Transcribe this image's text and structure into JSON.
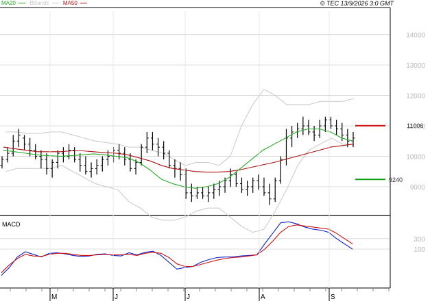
{
  "header": {
    "copyright": "© TEC 13/9/2026 3:0 GMT",
    "legend": [
      {
        "label": "MA20",
        "color": "#22aa22"
      },
      {
        "label": "BBands",
        "color": "#c8c8c8"
      },
      {
        "label": "MA50",
        "color": "#aa1111"
      }
    ]
  },
  "chart_data": [
    {
      "type": "line",
      "panel": "price",
      "x_labels": [
        "M",
        "J",
        "J",
        "A",
        "S"
      ],
      "yticks": [
        "9000",
        "10000",
        "11000",
        "12000",
        "13000",
        "14000"
      ],
      "ylim": [
        8100,
        14800
      ],
      "levels": [
        {
          "name": "resistance",
          "label": "11006",
          "value": 11006,
          "color": "#cc1111"
        },
        {
          "name": "support",
          "label": "9240",
          "value": 9240,
          "color": "#11a011"
        }
      ],
      "ohlc_bars": [
        [
          9700,
          10000,
          9600,
          9900
        ],
        [
          9900,
          10300,
          9800,
          10100
        ],
        [
          10100,
          10700,
          10000,
          10500
        ],
        [
          10500,
          10900,
          10300,
          10700
        ],
        [
          10600,
          10700,
          10200,
          10400
        ],
        [
          10400,
          10600,
          10000,
          10200
        ],
        [
          10200,
          10400,
          9900,
          10000
        ],
        [
          10000,
          10200,
          9600,
          9900
        ],
        [
          9900,
          10100,
          9400,
          9600
        ],
        [
          9600,
          9900,
          9300,
          9800
        ],
        [
          9800,
          10200,
          9600,
          10100
        ],
        [
          10100,
          10300,
          9800,
          10000
        ],
        [
          10000,
          10400,
          9900,
          10200
        ],
        [
          10200,
          10300,
          9800,
          9900
        ],
        [
          9900,
          10100,
          9500,
          9700
        ],
        [
          9700,
          10000,
          9400,
          9500
        ],
        [
          9500,
          9800,
          9300,
          9600
        ],
        [
          9600,
          9900,
          9400,
          9700
        ],
        [
          9700,
          10000,
          9500,
          9900
        ],
        [
          9900,
          10200,
          9700,
          10000
        ],
        [
          10000,
          10300,
          9800,
          10200
        ],
        [
          10200,
          10400,
          9900,
          10100
        ],
        [
          10100,
          10300,
          9700,
          9900
        ],
        [
          9900,
          10100,
          9500,
          9600
        ],
        [
          9600,
          9900,
          9400,
          9800
        ],
        [
          9800,
          10400,
          9700,
          10300
        ],
        [
          10300,
          10800,
          10100,
          10600
        ],
        [
          10600,
          10800,
          10200,
          10400
        ],
        [
          10400,
          10600,
          10000,
          10300
        ],
        [
          10300,
          10500,
          9900,
          10100
        ],
        [
          10100,
          10200,
          9600,
          9700
        ],
        [
          9700,
          9900,
          9300,
          9600
        ],
        [
          9600,
          9800,
          9200,
          9400
        ],
        [
          9400,
          9600,
          8600,
          8800
        ],
        [
          8800,
          9100,
          8500,
          8700
        ],
        [
          8700,
          9000,
          8600,
          8800
        ],
        [
          8800,
          9000,
          8600,
          8700
        ],
        [
          8700,
          9000,
          8500,
          8800
        ],
        [
          8800,
          9100,
          8600,
          8900
        ],
        [
          8900,
          9200,
          8700,
          9000
        ],
        [
          9000,
          9300,
          8800,
          9200
        ],
        [
          9200,
          9600,
          9000,
          9400
        ],
        [
          9400,
          9500,
          9000,
          9100
        ],
        [
          9100,
          9300,
          8800,
          8900
        ],
        [
          8900,
          9200,
          8700,
          9000
        ],
        [
          9000,
          9300,
          8800,
          9200
        ],
        [
          9200,
          9400,
          8900,
          9000
        ],
        [
          9000,
          9300,
          8700,
          8800
        ],
        [
          8800,
          9100,
          8400,
          8600
        ],
        [
          8600,
          9300,
          8500,
          9200
        ],
        [
          9200,
          10000,
          9100,
          9900
        ],
        [
          9900,
          10900,
          9700,
          10600
        ],
        [
          10600,
          11000,
          10300,
          10800
        ],
        [
          10800,
          11100,
          10600,
          10900
        ],
        [
          10900,
          11300,
          10700,
          11000
        ],
        [
          11000,
          11200,
          10700,
          10800
        ],
        [
          10800,
          11000,
          10500,
          10700
        ],
        [
          10700,
          11200,
          10600,
          11000
        ],
        [
          11000,
          11300,
          10800,
          11200
        ],
        [
          11200,
          11300,
          10900,
          11000
        ],
        [
          11000,
          11200,
          10700,
          10900
        ],
        [
          10900,
          11100,
          10500,
          10700
        ],
        [
          10700,
          10900,
          10300,
          10500
        ],
        [
          10500,
          10800,
          10300,
          10600
        ]
      ],
      "ma20": [
        10200,
        10150,
        10100,
        10050,
        10020,
        10000,
        10020,
        10050,
        10080,
        10050,
        10000,
        9950,
        9800,
        9550,
        9250,
        9100,
        9000,
        8950,
        9000,
        9100,
        9300,
        9600,
        9900,
        10200,
        10400,
        10600,
        10800,
        10900,
        10900,
        10800,
        10600,
        10500
      ],
      "ma50": [
        10300,
        10250,
        10200,
        10150,
        10150,
        10150,
        10180,
        10180,
        10150,
        10120,
        10100,
        10050,
        9950,
        9850,
        9700,
        9600,
        9550,
        9500,
        9480,
        9480,
        9500,
        9560,
        9640,
        9720,
        9800,
        9900,
        10000,
        10100,
        10200,
        10300,
        10350,
        10400
      ],
      "bb_upper": [
        10800,
        10800,
        10750,
        10750,
        10800,
        10800,
        10700,
        10600,
        10500,
        10450,
        10400,
        10300,
        10300,
        10200,
        10100,
        9900,
        9700,
        9800,
        9800,
        9700,
        10000,
        11000,
        11700,
        12200,
        12000,
        11700,
        11700,
        11700,
        11800,
        11800,
        11800,
        11900
      ],
      "bb_lower": [
        9500,
        9600,
        9600,
        9600,
        9600,
        9700,
        9500,
        9300,
        9100,
        9000,
        8900,
        8500,
        8300,
        8000,
        7900,
        7900,
        8000,
        8200,
        8300,
        8300,
        8000,
        7700,
        7500,
        7600,
        8200,
        8900,
        9700,
        10200,
        10400,
        10600,
        10400,
        10400
      ]
    },
    {
      "type": "line",
      "panel": "MACD",
      "title": "MACD",
      "yticks": [
        "100",
        "300"
      ],
      "ylim": [
        -600,
        700
      ],
      "series": [
        {
          "color": "#1020cc",
          "values": [
            -400,
            -250,
            -50,
            50,
            0,
            -50,
            20,
            30,
            10,
            -20,
            -40,
            -30,
            0,
            10,
            -20,
            -30,
            30,
            -10,
            40,
            60,
            -20,
            -150,
            -280,
            -250,
            -230,
            -150,
            -100,
            -60,
            -50,
            -50,
            -30,
            -20,
            -10,
            200,
            400,
            600,
            620,
            580,
            520,
            480,
            460,
            420,
            300,
            200,
            100
          ]
        },
        {
          "color": "#cc1111",
          "values": [
            -350,
            -200,
            -80,
            0,
            -30,
            -40,
            0,
            20,
            20,
            0,
            -20,
            -20,
            -10,
            0,
            -10,
            -10,
            0,
            -20,
            20,
            40,
            20,
            -60,
            -180,
            -230,
            -230,
            -190,
            -150,
            -110,
            -80,
            -60,
            -50,
            -30,
            -10,
            100,
            250,
            420,
            530,
            560,
            540,
            520,
            500,
            480,
            400,
            300,
            200
          ]
        }
      ]
    }
  ]
}
